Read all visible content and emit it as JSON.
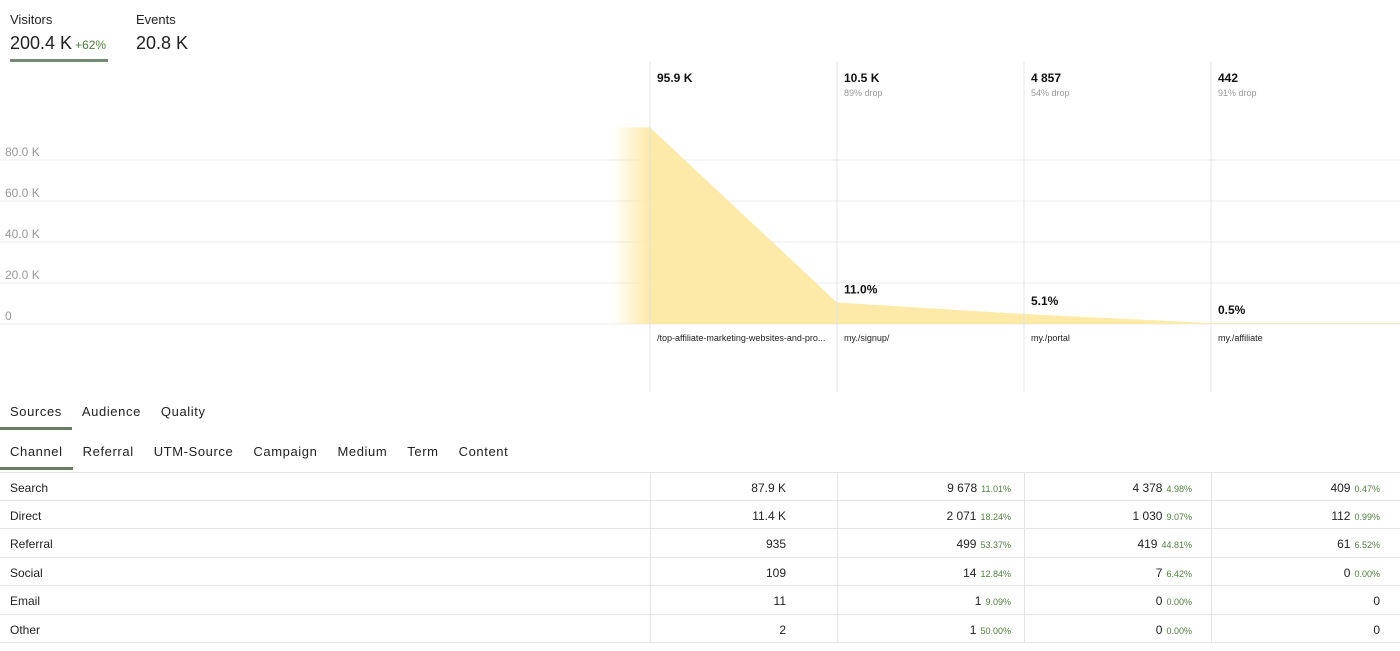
{
  "metrics": {
    "visitors": {
      "label": "Visitors",
      "value": "200.4 K",
      "delta": "+62%"
    },
    "events": {
      "label": "Events",
      "value": "20.8 K"
    }
  },
  "colors": {
    "funnel_fill": "#fde9a8",
    "accent": "#6a7d62",
    "positive": "#4f7f3f"
  },
  "chart_data": {
    "type": "area",
    "y_ticks": [
      "0",
      "20.0 K",
      "40.0 K",
      "60.0 K",
      "80.0 K"
    ],
    "ylim": [
      0,
      100000
    ],
    "grid": true,
    "steps": [
      {
        "count": "95.9 K",
        "value": 95900,
        "drop": "",
        "pct": "",
        "page": "/top-affiliate-marketing-websites-and-pro..."
      },
      {
        "count": "10.5 K",
        "value": 10500,
        "drop": "89% drop",
        "pct": "11.0%",
        "page": "my./signup/"
      },
      {
        "count": "4 857",
        "value": 4857,
        "drop": "54% drop",
        "pct": "5.1%",
        "page": "my./portal"
      },
      {
        "count": "442",
        "value": 442,
        "drop": "91% drop",
        "pct": "0.5%",
        "page": "my./affiliate"
      }
    ]
  },
  "tabs_main": [
    {
      "label": "Sources",
      "active": true
    },
    {
      "label": "Audience",
      "active": false
    },
    {
      "label": "Quality",
      "active": false
    }
  ],
  "tabs_sub": [
    {
      "label": "Channel",
      "active": true
    },
    {
      "label": "Referral",
      "active": false
    },
    {
      "label": "UTM-Source",
      "active": false
    },
    {
      "label": "Campaign",
      "active": false
    },
    {
      "label": "Medium",
      "active": false
    },
    {
      "label": "Term",
      "active": false
    },
    {
      "label": "Content",
      "active": false
    }
  ],
  "table": {
    "rows": [
      {
        "name": "Search",
        "cells": [
          {
            "v": "87.9 K",
            "p": ""
          },
          {
            "v": "9 678",
            "p": "11.01%"
          },
          {
            "v": "4 378",
            "p": "4.98%"
          },
          {
            "v": "409",
            "p": "0.47%"
          }
        ]
      },
      {
        "name": "Direct",
        "cells": [
          {
            "v": "11.4 K",
            "p": ""
          },
          {
            "v": "2 071",
            "p": "18.24%"
          },
          {
            "v": "1 030",
            "p": "9.07%"
          },
          {
            "v": "112",
            "p": "0.99%"
          }
        ]
      },
      {
        "name": "Referral",
        "cells": [
          {
            "v": "935",
            "p": ""
          },
          {
            "v": "499",
            "p": "53.37%"
          },
          {
            "v": "419",
            "p": "44.81%"
          },
          {
            "v": "61",
            "p": "6.52%"
          }
        ]
      },
      {
        "name": "Social",
        "cells": [
          {
            "v": "109",
            "p": ""
          },
          {
            "v": "14",
            "p": "12.84%"
          },
          {
            "v": "7",
            "p": "6.42%"
          },
          {
            "v": "0",
            "p": "0.00%"
          }
        ]
      },
      {
        "name": "Email",
        "cells": [
          {
            "v": "11",
            "p": ""
          },
          {
            "v": "1",
            "p": "9.09%"
          },
          {
            "v": "0",
            "p": "0.00%"
          },
          {
            "v": "0",
            "p": ""
          }
        ]
      },
      {
        "name": "Other",
        "cells": [
          {
            "v": "2",
            "p": ""
          },
          {
            "v": "1",
            "p": "50.00%"
          },
          {
            "v": "0",
            "p": "0.00%"
          },
          {
            "v": "0",
            "p": ""
          }
        ]
      }
    ]
  }
}
